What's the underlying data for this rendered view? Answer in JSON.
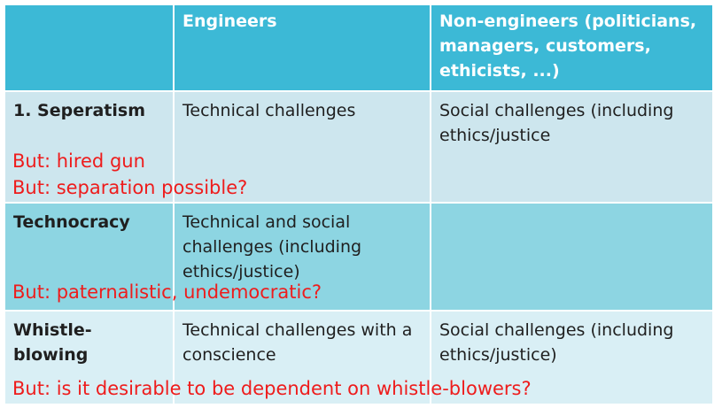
{
  "header": {
    "col1": "",
    "col2": "Engineers",
    "col3": "Non-engineers (politicians, managers, customers, ethicists, ...)"
  },
  "rows": [
    {
      "label": "1. Seperatism",
      "engineers": "Technical challenges",
      "non_engineers": "Social challenges (including ethics/justice",
      "notes": [
        "But: hired gun",
        "But: separation possible?"
      ]
    },
    {
      "label": "Technocracy",
      "engineers": "Technical and social challenges (including ethics/justice)",
      "non_engineers": "",
      "notes": [
        "But: paternalistic, undemocratic?"
      ]
    },
    {
      "label": "Whistle-blowing",
      "engineers": "Technical challenges with a conscience",
      "non_engineers": "Social challenges (including ethics/justice)",
      "notes": [
        "But: is it desirable to be dependent on whistle-blowers?"
      ]
    }
  ],
  "colors": {
    "header": "#3cb9d6",
    "row1": "#cde6ee",
    "row2": "#8dd5e2",
    "row3": "#d9eff5",
    "note_red": "#ee1c1c"
  }
}
